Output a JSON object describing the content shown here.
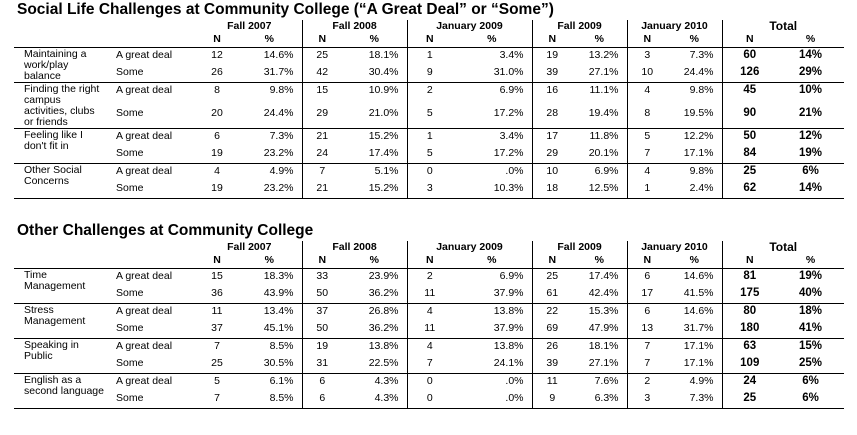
{
  "table1": {
    "title": "Social Life Challenges at Community College (“A Great Deal” or “Some”)",
    "periods": [
      "Fall 2007",
      "Fall 2008",
      "January 2009",
      "Fall 2009",
      "January 2010",
      "Total"
    ],
    "n_label": "N",
    "pct_label": "%",
    "rows": [
      {
        "category": "Maintaining a work/play balance",
        "levels": [
          {
            "level": "A great deal",
            "cells": [
              "12",
              "14.6%",
              "25",
              "18.1%",
              "1",
              "3.4%",
              "19",
              "13.2%",
              "3",
              "7.3%",
              "60",
              "14%"
            ]
          },
          {
            "level": "Some",
            "cells": [
              "26",
              "31.7%",
              "42",
              "30.4%",
              "9",
              "31.0%",
              "39",
              "27.1%",
              "10",
              "24.4%",
              "126",
              "29%"
            ]
          }
        ]
      },
      {
        "category": "Finding the right campus activities, clubs or friends",
        "levels": [
          {
            "level": "A great deal",
            "cells": [
              "8",
              "9.8%",
              "15",
              "10.9%",
              "2",
              "6.9%",
              "16",
              "11.1%",
              "4",
              "9.8%",
              "45",
              "10%"
            ]
          },
          {
            "level": "Some",
            "cells": [
              "20",
              "24.4%",
              "29",
              "21.0%",
              "5",
              "17.2%",
              "28",
              "19.4%",
              "8",
              "19.5%",
              "90",
              "21%"
            ]
          }
        ]
      },
      {
        "category": "Feeling like I don't fit in",
        "levels": [
          {
            "level": "A great deal",
            "cells": [
              "6",
              "7.3%",
              "21",
              "15.2%",
              "1",
              "3.4%",
              "17",
              "11.8%",
              "5",
              "12.2%",
              "50",
              "12%"
            ]
          },
          {
            "level": "Some",
            "cells": [
              "19",
              "23.2%",
              "24",
              "17.4%",
              "5",
              "17.2%",
              "29",
              "20.1%",
              "7",
              "17.1%",
              "84",
              "19%"
            ]
          }
        ]
      },
      {
        "category": "Other Social Concerns",
        "levels": [
          {
            "level": "A great deal",
            "cells": [
              "4",
              "4.9%",
              "7",
              "5.1%",
              "0",
              ".0%",
              "10",
              "6.9%",
              "4",
              "9.8%",
              "25",
              "6%"
            ]
          },
          {
            "level": "Some",
            "cells": [
              "19",
              "23.2%",
              "21",
              "15.2%",
              "3",
              "10.3%",
              "18",
              "12.5%",
              "1",
              "2.4%",
              "62",
              "14%"
            ]
          }
        ]
      }
    ]
  },
  "table2": {
    "title": "Other Challenges at Community College",
    "periods": [
      "Fall 2007",
      "Fall 2008",
      "January 2009",
      "Fall 2009",
      "January 2010",
      "Total"
    ],
    "n_label": "N",
    "pct_label": "%",
    "rows": [
      {
        "category": "Time Management",
        "levels": [
          {
            "level": "A great deal",
            "cells": [
              "15",
              "18.3%",
              "33",
              "23.9%",
              "2",
              "6.9%",
              "25",
              "17.4%",
              "6",
              "14.6%",
              "81",
              "19%"
            ]
          },
          {
            "level": "Some",
            "cells": [
              "36",
              "43.9%",
              "50",
              "36.2%",
              "11",
              "37.9%",
              "61",
              "42.4%",
              "17",
              "41.5%",
              "175",
              "40%"
            ]
          }
        ]
      },
      {
        "category": "Stress Management",
        "levels": [
          {
            "level": "A great deal",
            "cells": [
              "11",
              "13.4%",
              "37",
              "26.8%",
              "4",
              "13.8%",
              "22",
              "15.3%",
              "6",
              "14.6%",
              "80",
              "18%"
            ]
          },
          {
            "level": "Some",
            "cells": [
              "37",
              "45.1%",
              "50",
              "36.2%",
              "11",
              "37.9%",
              "69",
              "47.9%",
              "13",
              "31.7%",
              "180",
              "41%"
            ]
          }
        ]
      },
      {
        "category": "Speaking in Public",
        "levels": [
          {
            "level": "A great deal",
            "cells": [
              "7",
              "8.5%",
              "19",
              "13.8%",
              "4",
              "13.8%",
              "26",
              "18.1%",
              "7",
              "17.1%",
              "63",
              "15%"
            ]
          },
          {
            "level": "Some",
            "cells": [
              "25",
              "30.5%",
              "31",
              "22.5%",
              "7",
              "24.1%",
              "39",
              "27.1%",
              "7",
              "17.1%",
              "109",
              "25%"
            ]
          }
        ]
      },
      {
        "category": "English as a second language",
        "levels": [
          {
            "level": "A great deal",
            "cells": [
              "5",
              "6.1%",
              "6",
              "4.3%",
              "0",
              ".0%",
              "11",
              "7.6%",
              "2",
              "4.9%",
              "24",
              "6%"
            ]
          },
          {
            "level": "Some",
            "cells": [
              "7",
              "8.5%",
              "6",
              "4.3%",
              "0",
              ".0%",
              "9",
              "6.3%",
              "3",
              "7.3%",
              "25",
              "6%"
            ]
          }
        ]
      }
    ]
  }
}
